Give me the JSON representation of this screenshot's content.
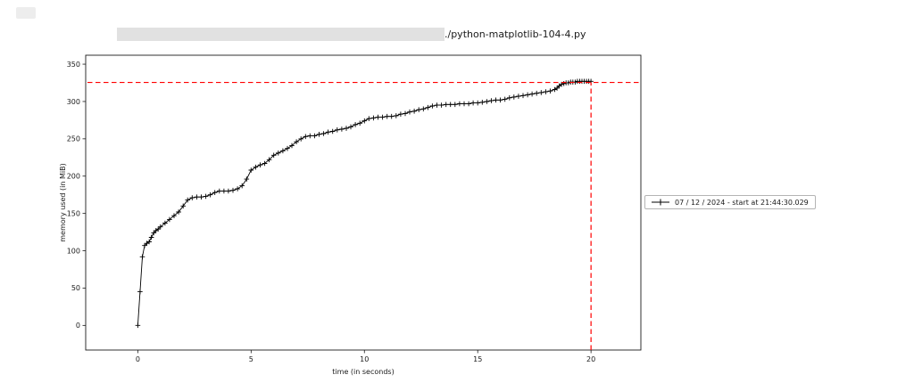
{
  "title": {
    "text": "./python-matplotlib-104-4.py"
  },
  "legend": {
    "label": "07 / 12 / 2024 - start at 21:44:30.029"
  },
  "chart_data": {
    "type": "line",
    "title": "./python-matplotlib-104-4.py",
    "xlabel": "time (in seconds)",
    "ylabel": "memory used (in MiB)",
    "xlim": [
      -2.3,
      22.2
    ],
    "ylim": [
      -33,
      362
    ],
    "xticks": [
      0,
      5,
      10,
      15,
      20
    ],
    "yticks": [
      0,
      50,
      100,
      150,
      200,
      250,
      300,
      350
    ],
    "grid": false,
    "legend_position": "right-outside",
    "series": [
      {
        "name": "07 / 12 / 2024 - start at 21:44:30.029",
        "color": "#000000",
        "marker": "+",
        "points": [
          [
            0.0,
            0
          ],
          [
            0.1,
            45
          ],
          [
            0.2,
            92
          ],
          [
            0.3,
            107
          ],
          [
            0.4,
            110
          ],
          [
            0.5,
            112
          ],
          [
            0.6,
            118
          ],
          [
            0.7,
            124
          ],
          [
            0.8,
            127
          ],
          [
            0.9,
            129
          ],
          [
            1.0,
            132
          ],
          [
            1.2,
            137
          ],
          [
            1.4,
            142
          ],
          [
            1.6,
            147
          ],
          [
            1.8,
            152
          ],
          [
            2.0,
            160
          ],
          [
            2.2,
            168
          ],
          [
            2.4,
            171
          ],
          [
            2.6,
            172
          ],
          [
            2.8,
            172
          ],
          [
            3.0,
            173
          ],
          [
            3.2,
            175
          ],
          [
            3.4,
            178
          ],
          [
            3.6,
            180
          ],
          [
            3.8,
            180
          ],
          [
            4.0,
            180
          ],
          [
            4.2,
            181
          ],
          [
            4.4,
            183
          ],
          [
            4.6,
            187
          ],
          [
            4.8,
            196
          ],
          [
            5.0,
            208
          ],
          [
            5.2,
            212
          ],
          [
            5.4,
            215
          ],
          [
            5.6,
            217
          ],
          [
            5.8,
            222
          ],
          [
            6.0,
            228
          ],
          [
            6.2,
            231
          ],
          [
            6.4,
            234
          ],
          [
            6.6,
            237
          ],
          [
            6.8,
            241
          ],
          [
            7.0,
            246
          ],
          [
            7.2,
            250
          ],
          [
            7.4,
            253
          ],
          [
            7.6,
            254
          ],
          [
            7.8,
            254
          ],
          [
            8.0,
            256
          ],
          [
            8.2,
            257
          ],
          [
            8.4,
            259
          ],
          [
            8.6,
            260
          ],
          [
            8.8,
            262
          ],
          [
            9.0,
            263
          ],
          [
            9.2,
            264
          ],
          [
            9.4,
            266
          ],
          [
            9.6,
            269
          ],
          [
            9.8,
            271
          ],
          [
            10.0,
            274
          ],
          [
            10.2,
            277
          ],
          [
            10.4,
            278
          ],
          [
            10.6,
            279
          ],
          [
            10.8,
            279
          ],
          [
            11.0,
            280
          ],
          [
            11.2,
            280
          ],
          [
            11.4,
            281
          ],
          [
            11.6,
            283
          ],
          [
            11.8,
            284
          ],
          [
            12.0,
            286
          ],
          [
            12.2,
            287
          ],
          [
            12.4,
            289
          ],
          [
            12.6,
            290
          ],
          [
            12.8,
            292
          ],
          [
            13.0,
            294
          ],
          [
            13.2,
            295
          ],
          [
            13.4,
            295
          ],
          [
            13.6,
            296
          ],
          [
            13.8,
            296
          ],
          [
            14.0,
            296
          ],
          [
            14.2,
            297
          ],
          [
            14.4,
            297
          ],
          [
            14.6,
            297
          ],
          [
            14.8,
            298
          ],
          [
            15.0,
            298
          ],
          [
            15.2,
            299
          ],
          [
            15.4,
            300
          ],
          [
            15.6,
            301
          ],
          [
            15.8,
            302
          ],
          [
            16.0,
            302
          ],
          [
            16.2,
            303
          ],
          [
            16.4,
            305
          ],
          [
            16.6,
            306
          ],
          [
            16.8,
            307
          ],
          [
            17.0,
            308
          ],
          [
            17.2,
            309
          ],
          [
            17.4,
            310
          ],
          [
            17.6,
            311
          ],
          [
            17.8,
            312
          ],
          [
            18.0,
            313
          ],
          [
            18.2,
            314
          ],
          [
            18.4,
            316
          ],
          [
            18.5,
            318
          ],
          [
            18.6,
            321
          ],
          [
            18.7,
            323
          ],
          [
            18.8,
            324
          ],
          [
            18.9,
            325
          ],
          [
            19.0,
            325
          ],
          [
            19.1,
            326
          ],
          [
            19.2,
            326
          ],
          [
            19.3,
            326
          ],
          [
            19.4,
            327
          ],
          [
            19.5,
            327
          ],
          [
            19.6,
            327
          ],
          [
            19.7,
            327
          ],
          [
            19.8,
            327
          ],
          [
            19.9,
            327
          ],
          [
            20.0,
            327
          ]
        ]
      }
    ],
    "annotations": [
      {
        "type": "hline",
        "y": 325.5,
        "color": "#ff0000",
        "style": "dashed"
      },
      {
        "type": "vline",
        "x": 20.0,
        "color": "#ff0000",
        "style": "dashed"
      }
    ]
  }
}
